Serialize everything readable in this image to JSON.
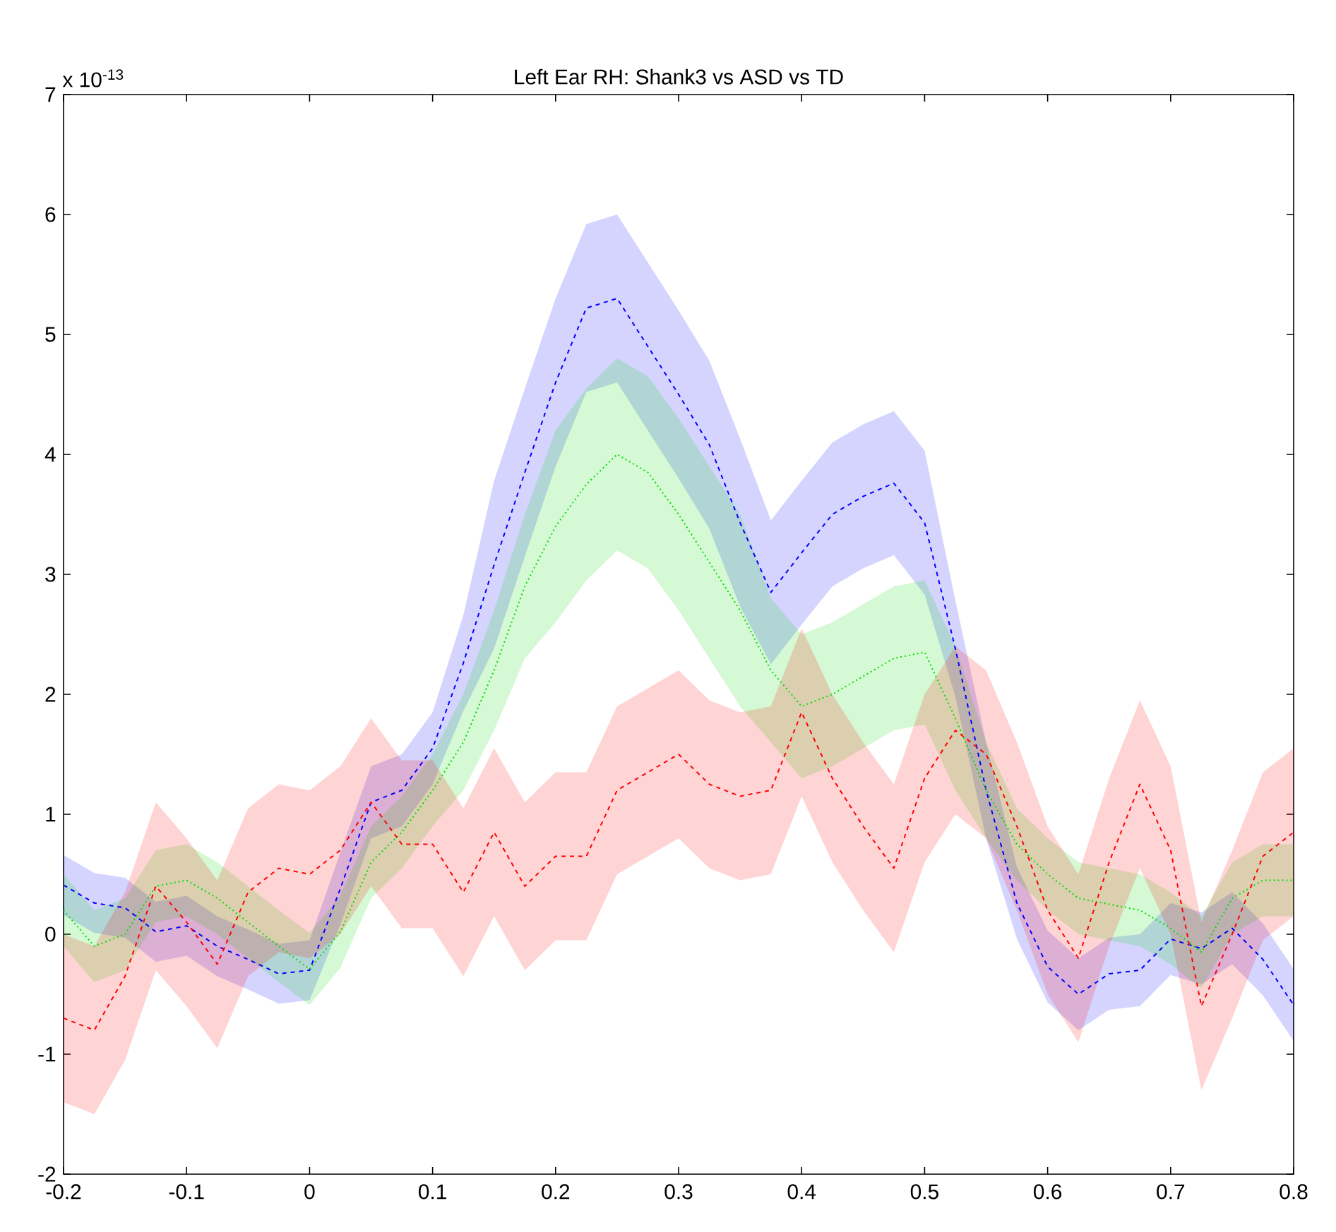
{
  "chart_data": {
    "type": "line",
    "title": "Left Ear RH: Shank3 vs ASD vs TD",
    "annotations": [
      "x 10$^{-13}$"
    ],
    "x": [
      -0.2,
      -0.175,
      -0.15,
      -0.125,
      -0.1,
      -0.075,
      -0.05,
      -0.025,
      0,
      0.025,
      0.05,
      0.075,
      0.1,
      0.125,
      0.15,
      0.175,
      0.2,
      0.225,
      0.25,
      0.275,
      0.3,
      0.325,
      0.35,
      0.375,
      0.4,
      0.425,
      0.45,
      0.475,
      0.5,
      0.525,
      0.55,
      0.575,
      0.6,
      0.625,
      0.65,
      0.675,
      0.7,
      0.725,
      0.75,
      0.775,
      0.8
    ],
    "series": [
      {
        "color": "#0000ff",
        "line_style": "dashed",
        "values": [
          0.41,
          0.26,
          0.22,
          0.02,
          0.07,
          -0.1,
          -0.21,
          -0.33,
          -0.3,
          0.38,
          1.1,
          1.2,
          1.55,
          2.26,
          3.08,
          3.85,
          4.6,
          5.22,
          5.3,
          4.9,
          4.5,
          4.08,
          3.43,
          2.85,
          3.18,
          3.5,
          3.65,
          3.76,
          3.43,
          2.38,
          1.2,
          0.26,
          -0.27,
          -0.5,
          -0.33,
          -0.3,
          -0.04,
          -0.12,
          0.05,
          -0.21,
          -0.59
        ],
        "lower": [
          0.16,
          0.01,
          -0.03,
          -0.23,
          -0.18,
          -0.35,
          -0.46,
          -0.58,
          -0.55,
          0.08,
          0.8,
          0.9,
          1.25,
          1.86,
          2.38,
          3.15,
          3.9,
          4.52,
          4.6,
          4.2,
          3.8,
          3.38,
          2.73,
          2.25,
          2.58,
          2.9,
          3.05,
          3.16,
          2.83,
          1.98,
          0.8,
          -0.04,
          -0.57,
          -0.8,
          -0.63,
          -0.6,
          -0.34,
          -0.42,
          -0.25,
          -0.51,
          -0.89
        ],
        "upper": [
          0.66,
          0.51,
          0.47,
          0.27,
          0.32,
          0.15,
          0.04,
          -0.08,
          -0.05,
          0.68,
          1.4,
          1.5,
          1.85,
          2.66,
          3.78,
          4.55,
          5.3,
          5.92,
          6.0,
          5.6,
          5.2,
          4.78,
          4.13,
          3.45,
          3.78,
          4.1,
          4.25,
          4.36,
          4.03,
          2.78,
          1.6,
          0.56,
          0.03,
          -0.2,
          -0.03,
          0,
          0.26,
          0.18,
          0.35,
          0.09,
          -0.29
        ]
      },
      {
        "color": "#00dd00",
        "line_style": "dotted",
        "values": [
          0.2,
          -0.1,
          0.0,
          0.4,
          0.45,
          0.3,
          0.1,
          -0.1,
          -0.29,
          0.02,
          0.6,
          0.85,
          1.2,
          1.6,
          2.2,
          2.9,
          3.4,
          3.75,
          4.0,
          3.85,
          3.5,
          3.1,
          2.7,
          2.2,
          1.9,
          2.0,
          2.15,
          2.3,
          2.35,
          1.8,
          1.2,
          0.75,
          0.5,
          0.3,
          0.25,
          0.2,
          0.05,
          -0.15,
          0.3,
          0.45,
          0.45
        ],
        "lower": [
          -0.1,
          -0.4,
          -0.3,
          0.1,
          0.15,
          0,
          -0.2,
          -0.4,
          -0.59,
          -0.28,
          0.3,
          0.55,
          0.9,
          1.2,
          1.7,
          2.3,
          2.6,
          2.95,
          3.2,
          3.05,
          2.7,
          2.3,
          1.9,
          1.6,
          1.3,
          1.4,
          1.55,
          1.7,
          1.75,
          1.2,
          0.8,
          0.45,
          0.2,
          0,
          -0.05,
          -0.1,
          -0.25,
          -0.45,
          0,
          0.15,
          0.15
        ],
        "upper": [
          0.5,
          0.2,
          0.3,
          0.7,
          0.75,
          0.6,
          0.4,
          0.2,
          0.01,
          0.32,
          0.9,
          1.15,
          1.5,
          2.0,
          2.7,
          3.5,
          4.2,
          4.55,
          4.8,
          4.65,
          4.3,
          3.9,
          3.5,
          2.8,
          2.5,
          2.6,
          2.75,
          2.9,
          2.95,
          2.4,
          1.6,
          1.05,
          0.8,
          0.6,
          0.55,
          0.5,
          0.35,
          0.15,
          0.6,
          0.75,
          0.75
        ]
      },
      {
        "color": "#ff0000",
        "line_style": "dashed",
        "values": [
          -0.7,
          -0.8,
          -0.35,
          0.4,
          0.1,
          -0.25,
          0.35,
          0.55,
          0.5,
          0.7,
          1.1,
          0.75,
          0.75,
          0.35,
          0.85,
          0.4,
          0.65,
          0.65,
          1.2,
          1.35,
          1.5,
          1.25,
          1.15,
          1.2,
          1.85,
          1.3,
          0.9,
          0.55,
          1.3,
          1.7,
          1.5,
          0.9,
          0.2,
          -0.2,
          0.6,
          1.25,
          0.7,
          -0.6,
          0.0,
          0.65,
          0.85
        ],
        "lower": [
          -1.4,
          -1.5,
          -1.05,
          -0.3,
          -0.6,
          -0.95,
          -0.35,
          -0.15,
          -0.2,
          0,
          0.4,
          0.05,
          0.05,
          -0.35,
          0.15,
          -0.3,
          -0.05,
          -0.05,
          0.5,
          0.65,
          0.8,
          0.55,
          0.45,
          0.5,
          1.15,
          0.6,
          0.2,
          -0.15,
          0.6,
          1.0,
          0.8,
          0.2,
          -0.5,
          -0.9,
          -0.1,
          0.55,
          0,
          -1.3,
          -0.7,
          -0.05,
          0.15
        ],
        "upper": [
          0,
          -0.1,
          0.35,
          1.1,
          0.8,
          0.45,
          1.05,
          1.25,
          1.2,
          1.4,
          1.8,
          1.45,
          1.45,
          1.05,
          1.55,
          1.1,
          1.35,
          1.35,
          1.9,
          2.05,
          2.2,
          1.95,
          1.85,
          1.9,
          2.55,
          2.0,
          1.6,
          1.25,
          2.0,
          2.4,
          2.2,
          1.6,
          0.9,
          0.5,
          1.3,
          1.95,
          1.4,
          0.1,
          0.7,
          1.35,
          1.55
        ]
      }
    ],
    "xlim": [
      -0.2,
      0.8
    ],
    "ylim": [
      -2,
      7
    ],
    "xticks": [
      -0.2,
      -0.1,
      0,
      0.1,
      0.2,
      0.3,
      0.4,
      0.5,
      0.6,
      0.7,
      0.8
    ],
    "yticks": [
      -2,
      -1,
      0,
      1,
      2,
      3,
      4,
      5,
      6,
      7
    ],
    "grid": false
  }
}
